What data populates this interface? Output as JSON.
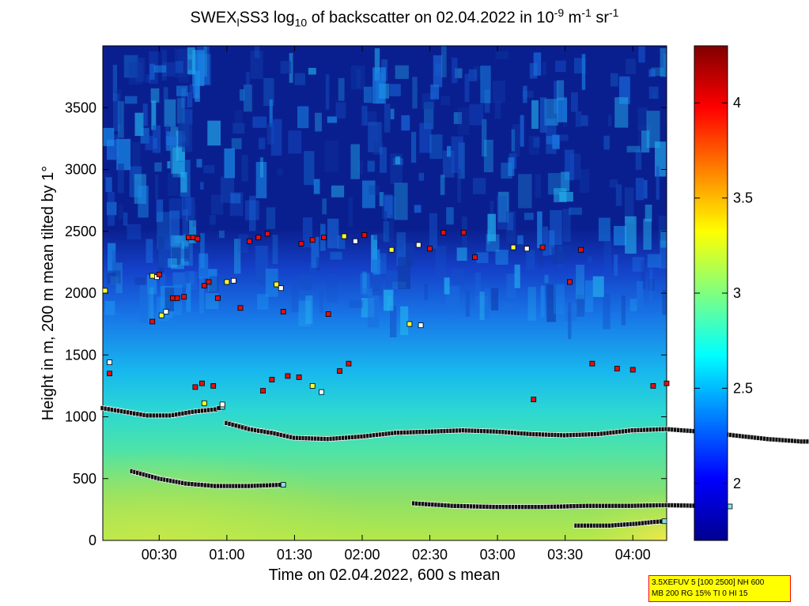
{
  "title": {
    "prefix": "SWEX",
    "sub1": "l",
    "mid": "SS3 log",
    "sub2": "10",
    "rest": " of backscatter on 02.04.2022 in 10",
    "sup1": "-9",
    "unit1": " m",
    "sup2": "-1",
    "unit2": " sr",
    "sup3": "-1"
  },
  "info_box": {
    "line1": "3.5XEFUV 5 [100 2500] NH 600",
    "line2": "MB 200 RG 15% TI 0 HI 15"
  },
  "colors": {
    "background_low": "#0a1f8f",
    "ground_layer": "#b5e84a",
    "marker_stroke": "#000000"
  },
  "chart_data": {
    "type": "heatmap",
    "xlabel": "Time on 02.04.2022, 600 s mean",
    "ylabel": "Height in m, 200 m mean tilted by 1°",
    "x_tick_labels": [
      "00:30",
      "01:00",
      "01:30",
      "02:00",
      "02:30",
      "03:00",
      "03:30",
      "04:00"
    ],
    "x_tick_minutes": [
      30,
      60,
      90,
      120,
      150,
      180,
      210,
      240
    ],
    "xlim_minutes": [
      5,
      255
    ],
    "y_ticks": [
      0,
      500,
      1000,
      1500,
      2000,
      2500,
      3000,
      3500
    ],
    "ylim": [
      0,
      4000
    ],
    "colorbar": {
      "range": [
        1.7,
        4.3
      ],
      "ticks": [
        2,
        2.5,
        3,
        3.5,
        4
      ],
      "tick_labels": [
        "2",
        "2.5",
        "3",
        "3.5",
        "4"
      ],
      "colormap": "jet"
    },
    "layers": [
      {
        "name": "",
        "points": [
          [
            5,
            1070
          ],
          [
            15,
            1040
          ],
          [
            25,
            1010
          ],
          [
            35,
            1010
          ],
          [
            45,
            1040
          ],
          [
            55,
            1060
          ],
          [
            58,
            1080
          ]
        ]
      },
      {
        "name": "",
        "points": [
          [
            60,
            950
          ],
          [
            70,
            900
          ],
          [
            80,
            870
          ],
          [
            90,
            830
          ],
          [
            105,
            820
          ],
          [
            120,
            840
          ],
          [
            135,
            870
          ],
          [
            150,
            880
          ],
          [
            165,
            890
          ],
          [
            180,
            880
          ],
          [
            195,
            860
          ],
          [
            210,
            850
          ],
          [
            225,
            860
          ],
          [
            240,
            890
          ],
          [
            255,
            900
          ],
          [
            270,
            880
          ],
          [
            285,
            850
          ],
          [
            300,
            820
          ],
          [
            315,
            800
          ],
          [
            330,
            800
          ],
          [
            345,
            820
          ],
          [
            360,
            830
          ]
        ]
      },
      {
        "name": "",
        "points": [
          [
            18,
            560
          ],
          [
            30,
            500
          ],
          [
            42,
            460
          ],
          [
            55,
            440
          ],
          [
            70,
            440
          ],
          [
            85,
            450
          ]
        ]
      },
      {
        "name": "",
        "points": [
          [
            143,
            300
          ],
          [
            160,
            280
          ],
          [
            180,
            270
          ],
          [
            200,
            270
          ],
          [
            220,
            280
          ],
          [
            240,
            280
          ],
          [
            255,
            285
          ],
          [
            270,
            280
          ],
          [
            283,
            275
          ]
        ]
      },
      {
        "name": "",
        "points": [
          [
            215,
            120
          ],
          [
            230,
            120
          ],
          [
            242,
            135
          ],
          [
            250,
            150
          ],
          [
            254,
            155
          ]
        ]
      }
    ],
    "scatter": [
      {
        "t": 43,
        "h": 2450
      },
      {
        "t": 45,
        "h": 2450
      },
      {
        "t": 47,
        "h": 2440
      },
      {
        "t": 27,
        "h": 2140
      },
      {
        "t": 29,
        "h": 2130
      },
      {
        "t": 30,
        "h": 2150
      },
      {
        "t": 36,
        "h": 1960
      },
      {
        "t": 38,
        "h": 1960
      },
      {
        "t": 41,
        "h": 1970
      },
      {
        "t": 31,
        "h": 1820
      },
      {
        "t": 33,
        "h": 1850
      },
      {
        "t": 27,
        "h": 1770
      },
      {
        "t": 50,
        "h": 2060
      },
      {
        "t": 52,
        "h": 2090
      },
      {
        "t": 56,
        "h": 1960
      },
      {
        "t": 60,
        "h": 2090
      },
      {
        "t": 63,
        "h": 2100
      },
      {
        "t": 66,
        "h": 1880
      },
      {
        "t": 70,
        "h": 2420
      },
      {
        "t": 74,
        "h": 2450
      },
      {
        "t": 78,
        "h": 2480
      },
      {
        "t": 82,
        "h": 2070
      },
      {
        "t": 84,
        "h": 2040
      },
      {
        "t": 85,
        "h": 1850
      },
      {
        "t": 93,
        "h": 2400
      },
      {
        "t": 98,
        "h": 2430
      },
      {
        "t": 103,
        "h": 2450
      },
      {
        "t": 112,
        "h": 2460
      },
      {
        "t": 117,
        "h": 2420
      },
      {
        "t": 121,
        "h": 2470
      },
      {
        "t": 105,
        "h": 1830
      },
      {
        "t": 110,
        "h": 1370
      },
      {
        "t": 114,
        "h": 1430
      },
      {
        "t": 133,
        "h": 2350
      },
      {
        "t": 145,
        "h": 2390
      },
      {
        "t": 150,
        "h": 2360
      },
      {
        "t": 156,
        "h": 2490
      },
      {
        "t": 165,
        "h": 2490
      },
      {
        "t": 170,
        "h": 2290
      },
      {
        "t": 187,
        "h": 2370
      },
      {
        "t": 193,
        "h": 2360
      },
      {
        "t": 200,
        "h": 2370
      },
      {
        "t": 217,
        "h": 2350
      },
      {
        "t": 212,
        "h": 2090
      },
      {
        "t": 222,
        "h": 1430
      },
      {
        "t": 141,
        "h": 1750
      },
      {
        "t": 146,
        "h": 1740
      },
      {
        "t": 196,
        "h": 1140
      },
      {
        "t": 46,
        "h": 1240
      },
      {
        "t": 49,
        "h": 1270
      },
      {
        "t": 54,
        "h": 1250
      },
      {
        "t": 50,
        "h": 1110
      },
      {
        "t": 58,
        "h": 1100
      },
      {
        "t": 76,
        "h": 1210
      },
      {
        "t": 80,
        "h": 1300
      },
      {
        "t": 87,
        "h": 1330
      },
      {
        "t": 92,
        "h": 1320
      },
      {
        "t": 98,
        "h": 1250
      },
      {
        "t": 102,
        "h": 1200
      },
      {
        "t": 233,
        "h": 1390
      },
      {
        "t": 240,
        "h": 1380
      },
      {
        "t": 249,
        "h": 1250
      },
      {
        "t": 255,
        "h": 1270
      },
      {
        "t": 6,
        "h": 2020
      },
      {
        "t": 8,
        "h": 1440
      },
      {
        "t": 8,
        "h": 1350
      }
    ]
  }
}
